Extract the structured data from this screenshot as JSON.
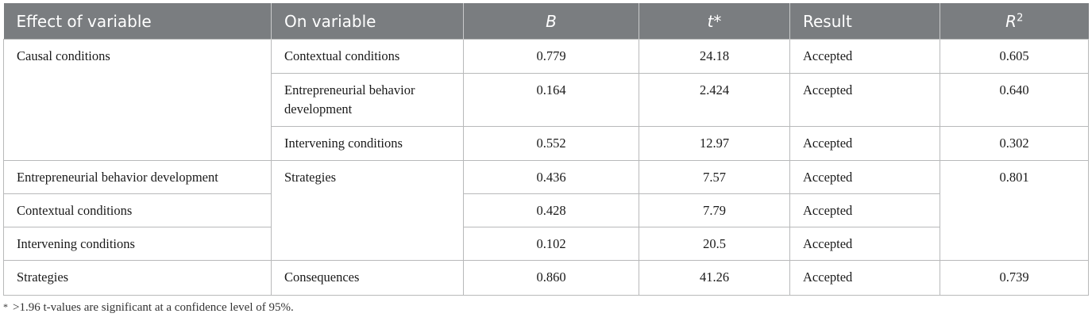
{
  "header": {
    "col1": "Effect of variable",
    "col2": "On variable",
    "col3": "B",
    "col4_base": "t",
    "col4_sup": "*",
    "col5": "Result",
    "col6_base": "R",
    "col6_sup": "2"
  },
  "rows": [
    {
      "effect": "Causal conditions",
      "on": "Contextual conditions",
      "b": "0.779",
      "t": "24.18",
      "result": "Accepted",
      "r2": "0.605"
    },
    {
      "on": "Entrepreneurial behavior development",
      "b": "0.164",
      "t": "2.424",
      "result": "Accepted",
      "r2": "0.640"
    },
    {
      "on": "Intervening conditions",
      "b": "0.552",
      "t": "12.97",
      "result": "Accepted",
      "r2": "0.302"
    },
    {
      "effect": "Entrepreneurial behavior development",
      "on": "Strategies",
      "b": "0.436",
      "t": "7.57",
      "result": "Accepted",
      "r2": "0.801"
    },
    {
      "effect": "Contextual conditions",
      "b": "0.428",
      "t": "7.79",
      "result": "Accepted"
    },
    {
      "effect": "Intervening conditions",
      "b": "0.102",
      "t": "20.5",
      "result": "Accepted"
    },
    {
      "effect": "Strategies",
      "on": "Consequences",
      "b": "0.860",
      "t": "41.26",
      "result": "Accepted",
      "r2": "0.739"
    }
  ],
  "footnote": {
    "marker": "*",
    "text": ">1.96 t-values are significant at a confidence level of 95%."
  }
}
